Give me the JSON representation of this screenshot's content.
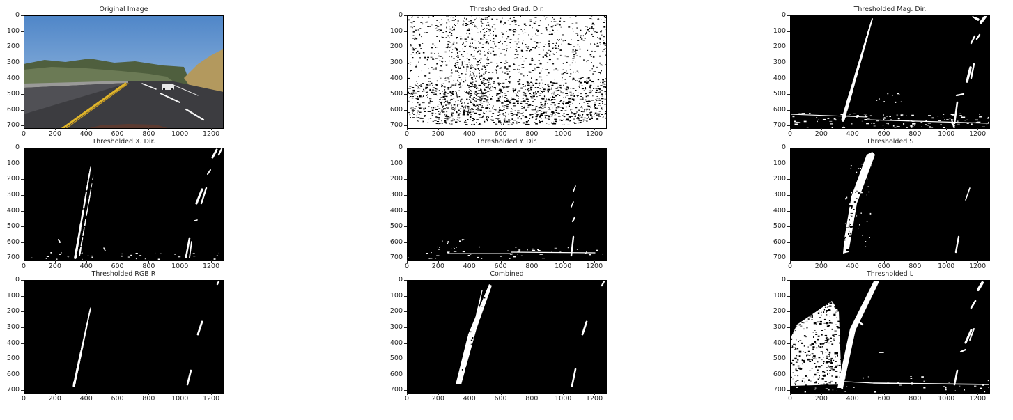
{
  "panels": [
    {
      "title": "Original Image",
      "icon": "road-photo-image"
    },
    {
      "title": "Thresholded Grad. Dir.",
      "icon": "gradient-direction-threshold-image"
    },
    {
      "title": "Thresholded Mag. Dir.",
      "icon": "magnitude-threshold-image"
    },
    {
      "title": "Thresholded X. Dir.",
      "icon": "x-gradient-threshold-image"
    },
    {
      "title": "Thresholded Y. Dir.",
      "icon": "y-gradient-threshold-image"
    },
    {
      "title": "Thresholded S",
      "icon": "s-channel-threshold-image"
    },
    {
      "title": "Thresholded RGB R",
      "icon": "rgb-r-threshold-image"
    },
    {
      "title": "Combined",
      "icon": "combined-threshold-image"
    },
    {
      "title": "Thresholded L",
      "icon": "l-channel-threshold-image"
    }
  ],
  "axes": {
    "y_ticks": [
      "0",
      "100",
      "200",
      "300",
      "400",
      "500",
      "600",
      "700"
    ],
    "x_ticks": [
      "0",
      "200",
      "400",
      "600",
      "800",
      "1000",
      "1200"
    ],
    "x_max": 1280,
    "y_max": 720
  },
  "colors": {
    "sky": "#6f9fd4",
    "hills": "#4f5f3e",
    "road": "#3c3c40",
    "yellow_lane": "#e0b52a",
    "white_lane": "#f4f4f4",
    "grass": "#b3995e"
  }
}
